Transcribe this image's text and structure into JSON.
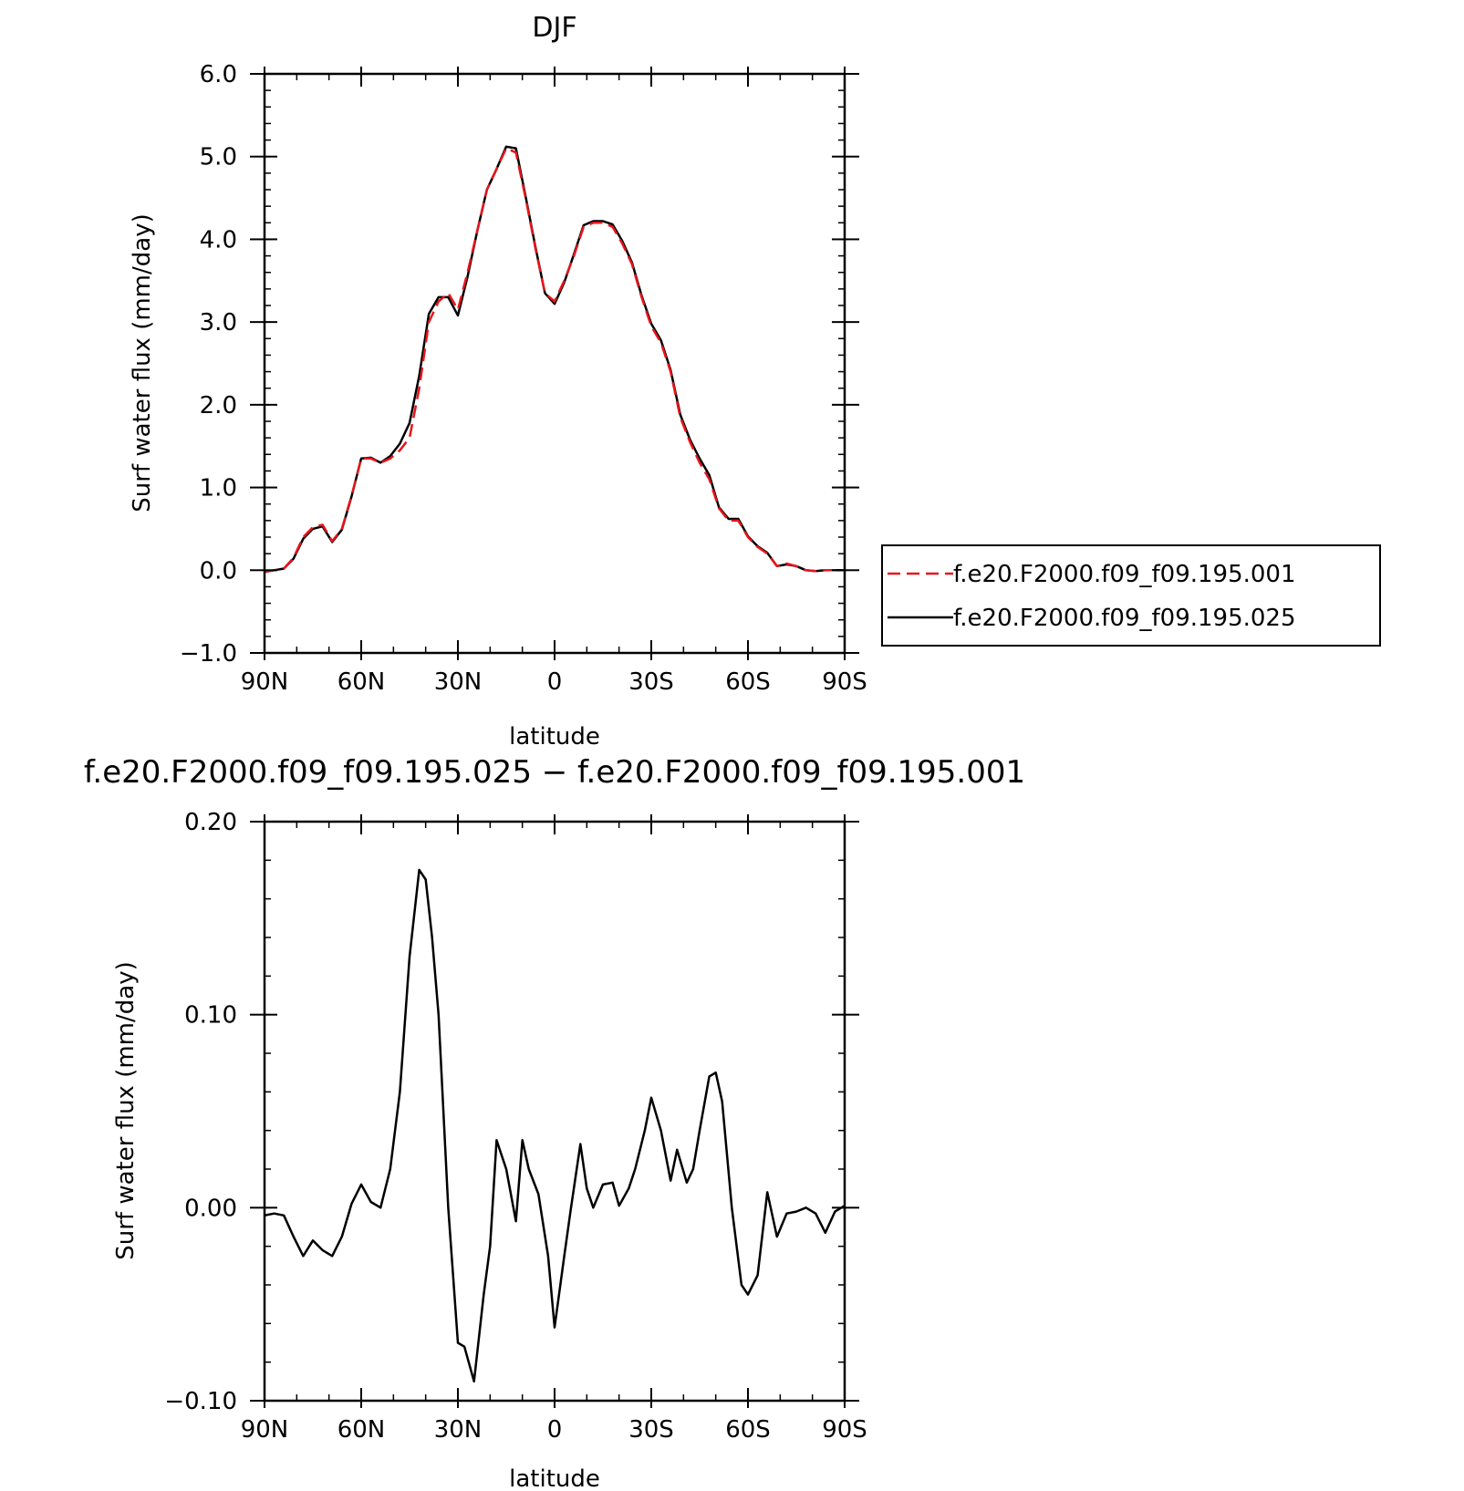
{
  "chart_data": [
    {
      "type": "line",
      "title": "DJF",
      "xlabel": "latitude",
      "ylabel": "Surf water flux (mm/day)",
      "x_unit": "degrees latitude (positive = N, negative = S)",
      "xlim": [
        90,
        -90
      ],
      "ylim": [
        -1.0,
        6.0
      ],
      "xticks": [
        90,
        60,
        30,
        0,
        -30,
        -60,
        -90
      ],
      "xtick_labels": [
        "90N",
        "60N",
        "30N",
        "0",
        "30S",
        "60S",
        "90S"
      ],
      "yticks": [
        -1,
        0,
        1,
        2,
        3,
        4,
        5,
        6
      ],
      "ytick_labels": [
        "−1.0",
        "0.0",
        "1.0",
        "2.0",
        "3.0",
        "4.0",
        "5.0",
        "6.0"
      ],
      "legend_position": "right",
      "x": [
        90,
        87,
        84,
        81,
        78,
        75,
        72,
        69,
        66,
        63,
        60,
        57,
        54,
        51,
        48,
        45,
        42,
        39,
        36,
        33,
        30,
        27,
        24,
        21,
        18,
        15,
        12,
        9,
        6,
        3,
        0,
        -3,
        -6,
        -9,
        -12,
        -15,
        -18,
        -21,
        -24,
        -27,
        -30,
        -33,
        -36,
        -39,
        -42,
        -45,
        -48,
        -51,
        -54,
        -57,
        -60,
        -63,
        -66,
        -69,
        -72,
        -75,
        -78,
        -81,
        -84,
        -87,
        -90
      ],
      "series": [
        {
          "name": "f.e20.F2000.f09_f09.195.001",
          "color": "#e8141c",
          "dash": "dashed",
          "values": [
            -0.02,
            0.0,
            0.02,
            0.15,
            0.4,
            0.52,
            0.55,
            0.35,
            0.5,
            0.9,
            1.35,
            1.35,
            1.3,
            1.35,
            1.45,
            1.6,
            2.2,
            3.0,
            3.25,
            3.35,
            3.15,
            3.6,
            4.1,
            4.6,
            4.85,
            5.1,
            5.05,
            4.5,
            3.9,
            3.35,
            3.25,
            3.5,
            3.8,
            4.15,
            4.2,
            4.2,
            4.15,
            3.95,
            3.7,
            3.3,
            2.95,
            2.75,
            2.4,
            1.85,
            1.55,
            1.3,
            1.1,
            0.75,
            0.6,
            0.6,
            0.4,
            0.28,
            0.2,
            0.05,
            0.08,
            0.05,
            0.0,
            -0.01,
            0.0,
            0.0,
            0.0
          ]
        },
        {
          "name": "f.e20.F2000.f09_f09.195.025",
          "color": "#000000",
          "dash": "solid",
          "values": [
            -0.02,
            0.0,
            0.02,
            0.14,
            0.38,
            0.5,
            0.53,
            0.34,
            0.49,
            0.89,
            1.35,
            1.36,
            1.3,
            1.38,
            1.53,
            1.78,
            2.35,
            3.1,
            3.3,
            3.3,
            3.08,
            3.55,
            4.1,
            4.6,
            4.85,
            5.12,
            5.1,
            4.52,
            3.92,
            3.35,
            3.22,
            3.48,
            3.82,
            4.17,
            4.22,
            4.22,
            4.18,
            3.98,
            3.72,
            3.32,
            2.98,
            2.78,
            2.42,
            1.88,
            1.58,
            1.35,
            1.15,
            0.76,
            0.62,
            0.62,
            0.41,
            0.29,
            0.21,
            0.05,
            0.07,
            0.05,
            0.0,
            -0.01,
            0.0,
            0.0,
            0.0
          ]
        }
      ]
    },
    {
      "type": "line",
      "title": "f.e20.F2000.f09_f09.195.025 − f.e20.F2000.f09_f09.195.001",
      "xlabel": "latitude",
      "ylabel": "Surf water flux (mm/day)",
      "xlim": [
        90,
        -90
      ],
      "ylim": [
        -0.1,
        0.2
      ],
      "xticks": [
        90,
        60,
        30,
        0,
        -30,
        -60,
        -90
      ],
      "xtick_labels": [
        "90N",
        "60N",
        "30N",
        "0",
        "30S",
        "60S",
        "90S"
      ],
      "yticks": [
        -0.1,
        0.0,
        0.1,
        0.2
      ],
      "ytick_labels": [
        "−0.10",
        "0.00",
        "0.10",
        "0.20"
      ],
      "x": [
        90,
        87,
        84,
        81,
        78,
        75,
        72,
        69,
        66,
        63,
        60,
        57,
        54,
        51,
        48,
        45,
        42,
        40,
        38,
        36,
        33,
        30,
        28,
        25,
        22,
        20,
        18,
        15,
        12,
        10,
        8,
        5,
        2,
        0,
        -3,
        -5,
        -8,
        -10,
        -12,
        -15,
        -18,
        -20,
        -23,
        -25,
        -28,
        -30,
        -33,
        -36,
        -38,
        -41,
        -43,
        -45,
        -48,
        -50,
        -52,
        -55,
        -58,
        -60,
        -63,
        -66,
        -69,
        -72,
        -75,
        -78,
        -81,
        -84,
        -87,
        -90
      ],
      "series": [
        {
          "name": "",
          "color": "#000000",
          "dash": "solid",
          "values": [
            -0.004,
            -0.003,
            -0.004,
            -0.015,
            -0.025,
            -0.017,
            -0.022,
            -0.025,
            -0.015,
            0.002,
            0.012,
            0.003,
            0.0,
            0.02,
            0.06,
            0.13,
            0.175,
            0.17,
            0.14,
            0.1,
            0.0,
            -0.07,
            -0.072,
            -0.09,
            -0.045,
            -0.02,
            0.035,
            0.02,
            -0.007,
            0.035,
            0.02,
            0.007,
            -0.025,
            -0.062,
            -0.025,
            -0.001,
            0.033,
            0.01,
            0.0,
            0.012,
            0.013,
            0.001,
            0.01,
            0.02,
            0.04,
            0.057,
            0.04,
            0.014,
            0.03,
            0.013,
            0.02,
            0.04,
            0.068,
            0.07,
            0.055,
            0.0,
            -0.04,
            -0.045,
            -0.035,
            0.008,
            -0.015,
            -0.003,
            -0.002,
            0.0,
            -0.003,
            -0.013,
            -0.002,
            0.001
          ]
        }
      ]
    }
  ]
}
